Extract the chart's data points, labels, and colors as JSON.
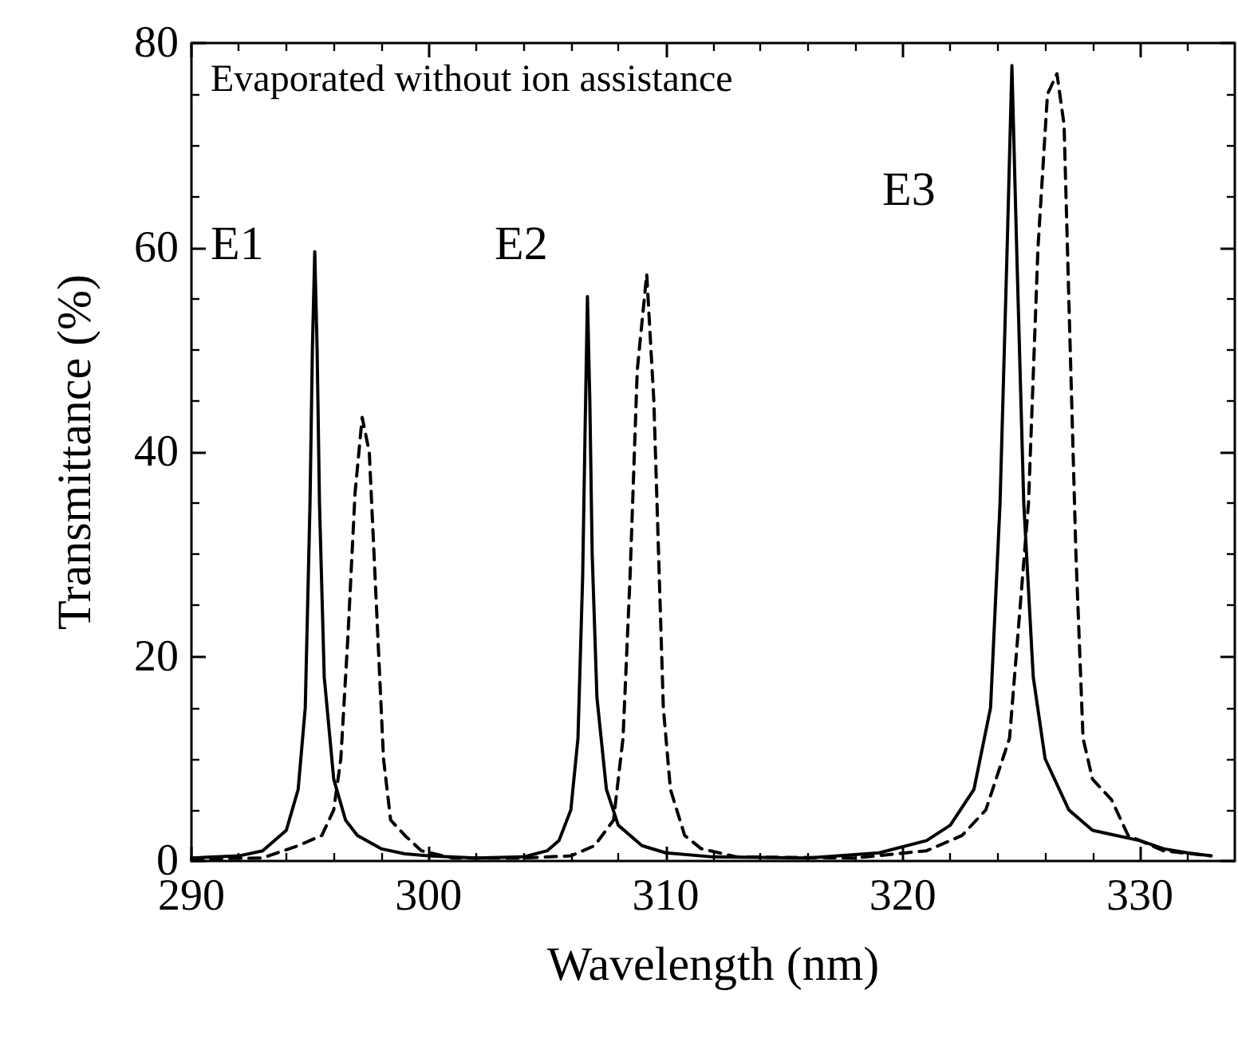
{
  "chart_data": {
    "type": "line",
    "xlabel": "Wavelength (nm)",
    "ylabel": "Transmittance (%)",
    "xlim": [
      290,
      334
    ],
    "xticks": [
      290,
      300,
      310,
      320,
      330
    ],
    "ylim": [
      0,
      80
    ],
    "yticks": [
      0,
      20,
      40,
      60,
      80
    ],
    "grid": false,
    "marker": "none",
    "annotations": [
      "Evaporated without ion assistance",
      "E1",
      "E2",
      "E3"
    ],
    "series": [
      {
        "color": "#000000",
        "line_style": "solid",
        "x": [
          290,
          292,
          293,
          294,
          294.5,
          294.8,
          295.0,
          295.1,
          295.2,
          295.3,
          295.4,
          295.6,
          296,
          296.5,
          297,
          298,
          299,
          300,
          302,
          304,
          305,
          305.5,
          306,
          306.3,
          306.5,
          306.6,
          306.7,
          306.8,
          306.9,
          307.1,
          307.5,
          308,
          309,
          310,
          312,
          316,
          319,
          321,
          322,
          323,
          323.7,
          324.1,
          324.4,
          324.6,
          324.8,
          325.1,
          325.5,
          326,
          327,
          328,
          329,
          330,
          331,
          332,
          333
        ],
        "values": [
          0.3,
          0.5,
          1.0,
          3,
          7,
          15,
          35,
          50,
          59.6,
          50,
          35,
          18,
          8,
          4,
          2.5,
          1.2,
          0.7,
          0.5,
          0.3,
          0.4,
          1.0,
          2,
          5,
          12,
          28,
          42,
          55.2,
          45,
          30,
          16,
          7,
          3.5,
          1.5,
          0.8,
          0.4,
          0.3,
          0.8,
          2,
          3.5,
          7,
          15,
          35,
          60,
          77.8,
          60,
          35,
          18,
          10,
          5,
          3,
          2.5,
          2,
          1.2,
          0.8,
          0.5
        ]
      },
      {
        "color": "#000000",
        "line_style": "dashed",
        "x": [
          290,
          293,
          294.5,
          295.5,
          296,
          296.3,
          296.6,
          296.9,
          297.2,
          297.5,
          297.7,
          297.9,
          298.1,
          298.4,
          299,
          299.7,
          301,
          304,
          306,
          307,
          307.8,
          308.2,
          308.5,
          308.8,
          309.2,
          309.5,
          309.7,
          309.9,
          310.2,
          310.8,
          311.5,
          313,
          318,
          321,
          322.5,
          323.5,
          324.5,
          325.3,
          325.7,
          326.1,
          326.5,
          326.8,
          327,
          327.3,
          327.6,
          328,
          328.8,
          329.5,
          331,
          333
        ],
        "values": [
          0.2,
          0.3,
          1.5,
          2.5,
          5,
          10,
          22,
          36,
          43.4,
          40,
          30,
          20,
          10,
          4,
          2.5,
          1,
          0.3,
          0.3,
          0.5,
          1.5,
          4,
          12,
          28,
          48,
          57.4,
          45,
          30,
          15,
          7,
          2.5,
          1.2,
          0.4,
          0.3,
          1,
          2.5,
          5,
          12,
          35,
          60,
          75,
          77.0,
          72,
          55,
          30,
          12,
          8,
          6,
          2.5,
          1,
          0.5
        ]
      }
    ]
  }
}
